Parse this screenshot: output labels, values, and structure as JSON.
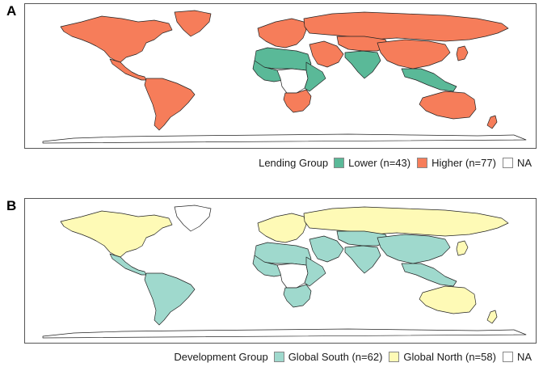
{
  "panels": [
    {
      "letter": "A",
      "legend": {
        "title": "Lending Group",
        "items": [
          {
            "label": "Lower (n=43)",
            "color": "#5ab998"
          },
          {
            "label": "Higher (n=77)",
            "color": "#f67d5a"
          },
          {
            "label": "NA",
            "color": "#ffffff"
          }
        ]
      },
      "region_fill": {
        "north_america": "#f67d5a",
        "greenland": "#f67d5a",
        "central_america": "#f67d5a",
        "south_america": "#f67d5a",
        "europe": "#f67d5a",
        "russia": "#f67d5a",
        "north_africa": "#5ab998",
        "west_africa": "#5ab998",
        "central_africa": "#ffffff",
        "east_africa": "#5ab998",
        "southern_africa": "#f67d5a",
        "middle_east": "#f67d5a",
        "central_asia": "#f67d5a",
        "south_asia": "#5ab998",
        "china": "#f67d5a",
        "southeast_asia": "#5ab998",
        "japan": "#f67d5a",
        "australia": "#f67d5a",
        "new_zealand": "#f67d5a",
        "antarctica": "#ffffff"
      }
    },
    {
      "letter": "B",
      "legend": {
        "title": "Development Group",
        "items": [
          {
            "label": "Global South (n=62)",
            "color": "#9fd9cd"
          },
          {
            "label": "Global North (n=58)",
            "color": "#fefab6"
          },
          {
            "label": "NA",
            "color": "#ffffff"
          }
        ]
      },
      "region_fill": {
        "north_america": "#fefab6",
        "greenland": "#ffffff",
        "central_america": "#9fd9cd",
        "south_america": "#9fd9cd",
        "europe": "#fefab6",
        "russia": "#fefab6",
        "north_africa": "#9fd9cd",
        "west_africa": "#9fd9cd",
        "central_africa": "#ffffff",
        "east_africa": "#9fd9cd",
        "southern_africa": "#9fd9cd",
        "middle_east": "#9fd9cd",
        "central_asia": "#9fd9cd",
        "south_asia": "#9fd9cd",
        "china": "#9fd9cd",
        "southeast_asia": "#9fd9cd",
        "japan": "#fefab6",
        "australia": "#fefab6",
        "new_zealand": "#fefab6",
        "antarctica": "#ffffff"
      }
    }
  ]
}
